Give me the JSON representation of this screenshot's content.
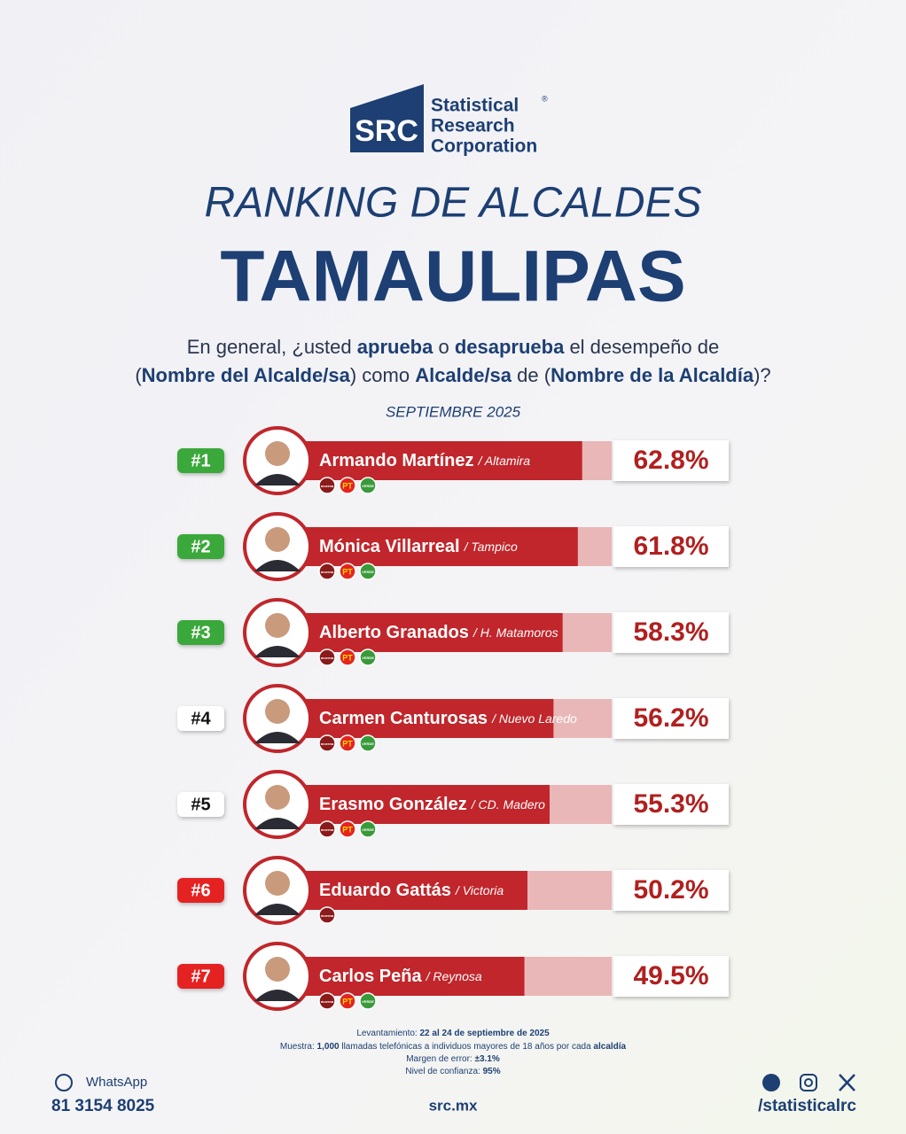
{
  "header": {
    "logo_mark": "SRC",
    "logo_lines": [
      "Statistical",
      "Research",
      "Corporation"
    ],
    "logo_reg": "®",
    "kicker": "RANKING DE ALCALDES",
    "title": "TAMAULIPAS",
    "question": [
      [
        {
          "text": "En general, ¿usted ",
          "bold": false
        },
        {
          "text": "aprueba",
          "bold": true
        },
        {
          "text": " o ",
          "bold": false
        },
        {
          "text": "desaprueba",
          "bold": true
        },
        {
          "text": " el desempeño de",
          "bold": false
        }
      ],
      [
        {
          "text": "(",
          "bold": false
        },
        {
          "text": "Nombre del Alcalde/sa",
          "bold": true
        },
        {
          "text": ") como ",
          "bold": false
        },
        {
          "text": "Alcalde/sa",
          "bold": true
        },
        {
          "text": " de (",
          "bold": false
        },
        {
          "text": "Nombre de la Alcaldía",
          "bold": true
        },
        {
          "text": ")?",
          "bold": false
        }
      ]
    ],
    "date": "SEPTIEMBRE 2025"
  },
  "chart_data": {
    "type": "bar",
    "orientation": "horizontal",
    "xlim": [
      0,
      100
    ],
    "color": "#c0262b",
    "track_color": "#e9b7b7",
    "ranks": [
      "#1",
      "#2",
      "#3",
      "#4",
      "#5",
      "#6",
      "#7"
    ],
    "badge_colors": [
      "#3aa83a",
      "#3aa83a",
      "#3aa83a",
      "#ffffff",
      "#ffffff",
      "#e52420",
      "#e52420"
    ],
    "categories": [
      "Armando Martínez",
      "Mónica Villarreal",
      "Alberto Granados",
      "Carmen Canturosas",
      "Erasmo González",
      "Eduardo Gattás",
      "Carlos Peña"
    ],
    "cities": [
      "/ Altamira",
      "/ Tampico",
      "/ H. Matamoros",
      "/ Nuevo Laredo",
      "/ CD. Madero",
      "/ Victoria",
      "/ Reynosa"
    ],
    "parties": [
      [
        "morena",
        "PT",
        "VERDE"
      ],
      [
        "morena",
        "PT",
        "VERDE"
      ],
      [
        "morena",
        "PT",
        "VERDE"
      ],
      [
        "morena",
        "PT",
        "VERDE"
      ],
      [
        "morena",
        "PT",
        "VERDE"
      ],
      [
        "morena"
      ],
      [
        "morena",
        "PT",
        "VERDE"
      ]
    ],
    "values": [
      62.8,
      61.8,
      58.3,
      56.2,
      55.3,
      50.2,
      49.5
    ],
    "value_labels": [
      "62.8%",
      "61.8%",
      "58.3%",
      "56.2%",
      "55.3%",
      "50.2%",
      "49.5%"
    ]
  },
  "footer": {
    "notes": [
      [
        {
          "text": "Levantamiento: ",
          "bold": false
        },
        {
          "text": "22 al 24 de septiembre de 2025",
          "bold": true
        }
      ],
      [
        {
          "text": "Muestra: ",
          "bold": false
        },
        {
          "text": "1,000",
          "bold": true
        },
        {
          "text": " llamadas telefónicas a individuos mayores de 18 años por cada ",
          "bold": false
        },
        {
          "text": "alcaldía",
          "bold": true
        }
      ],
      [
        {
          "text": "Margen de error: ",
          "bold": false
        },
        {
          "text": "±3.1%",
          "bold": true
        }
      ],
      [
        {
          "text": "Nivel de confianza: ",
          "bold": false
        },
        {
          "text": "95%",
          "bold": true
        }
      ]
    ],
    "whatsapp_label": "WhatsApp",
    "phone": "81 3154 8025",
    "website": "src.mx",
    "social_handle": "/statisticalrc"
  }
}
